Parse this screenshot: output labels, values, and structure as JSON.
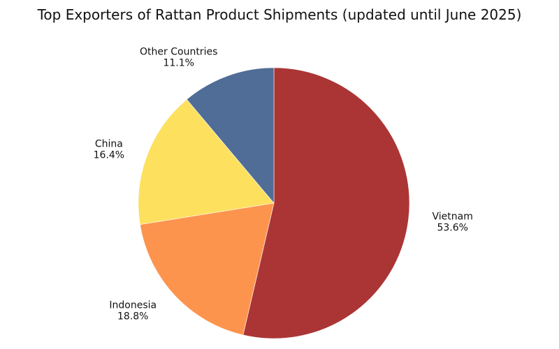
{
  "chart_data": {
    "type": "pie",
    "title": "Top Exporters of Rattan Product Shipments (updated until June 2025)",
    "slices": [
      {
        "label": "Vietnam",
        "value": 53.6,
        "display": "53.6%",
        "color": "#ab3535"
      },
      {
        "label": "Indonesia",
        "value": 18.8,
        "display": "18.8%",
        "color": "#fd944e"
      },
      {
        "label": "China",
        "value": 16.4,
        "display": "16.4%",
        "color": "#fde05e"
      },
      {
        "label": "Other Countries",
        "value": 11.1,
        "display": "11.1%",
        "color": "#4f6d96"
      }
    ],
    "start_angle": "top",
    "direction": "clockwise",
    "legend": "none"
  }
}
